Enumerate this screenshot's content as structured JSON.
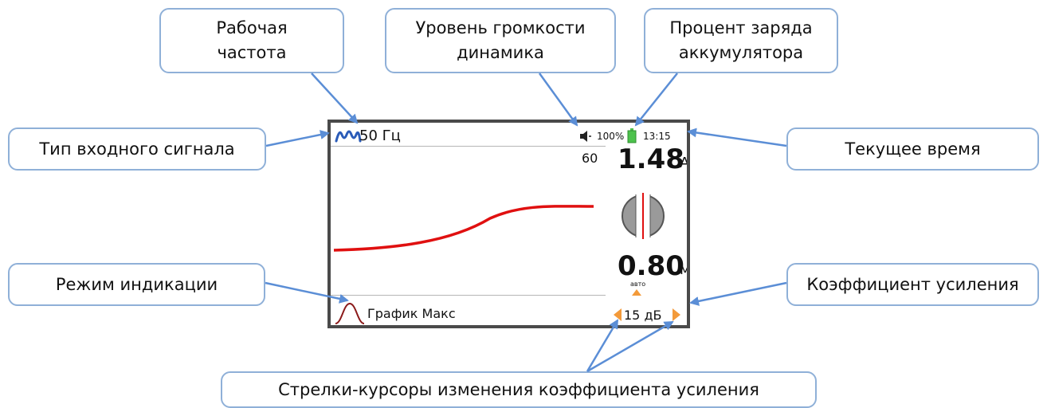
{
  "callouts": {
    "frequency": "Рабочая\nчастота",
    "volume": "Уровень громкости\nдинамика",
    "battery": "Процент заряда\nаккумулятора",
    "signal_type": "Тип входного сигнала",
    "time": "Текущее время",
    "mode": "Режим индикации",
    "gain": "Коэффициент усиления",
    "arrows": "Стрелки-курсоры изменения коэффициента усиления"
  },
  "screen": {
    "frequency": "50 Гц",
    "battery_percent": "100%",
    "time": "13:15",
    "small_value": "60",
    "current_value": "1.48",
    "current_unit": "А",
    "depth_value": "0.80",
    "depth_unit": "м",
    "auto_label": "авто",
    "mode_label": "График Макс",
    "gain_value": "15 дБ"
  },
  "colors": {
    "callout_border": "#8fb0d8",
    "arrow": "#5b8ed6",
    "signal_icon": "#2a5bb8",
    "graph_line": "#e01010",
    "orange_arrows": "#f39a3a",
    "battery": "#4cc24c"
  },
  "icons": [
    "speaker-icon",
    "battery-icon",
    "signal-wave-icon",
    "peak-mode-icon",
    "compass-icon"
  ]
}
